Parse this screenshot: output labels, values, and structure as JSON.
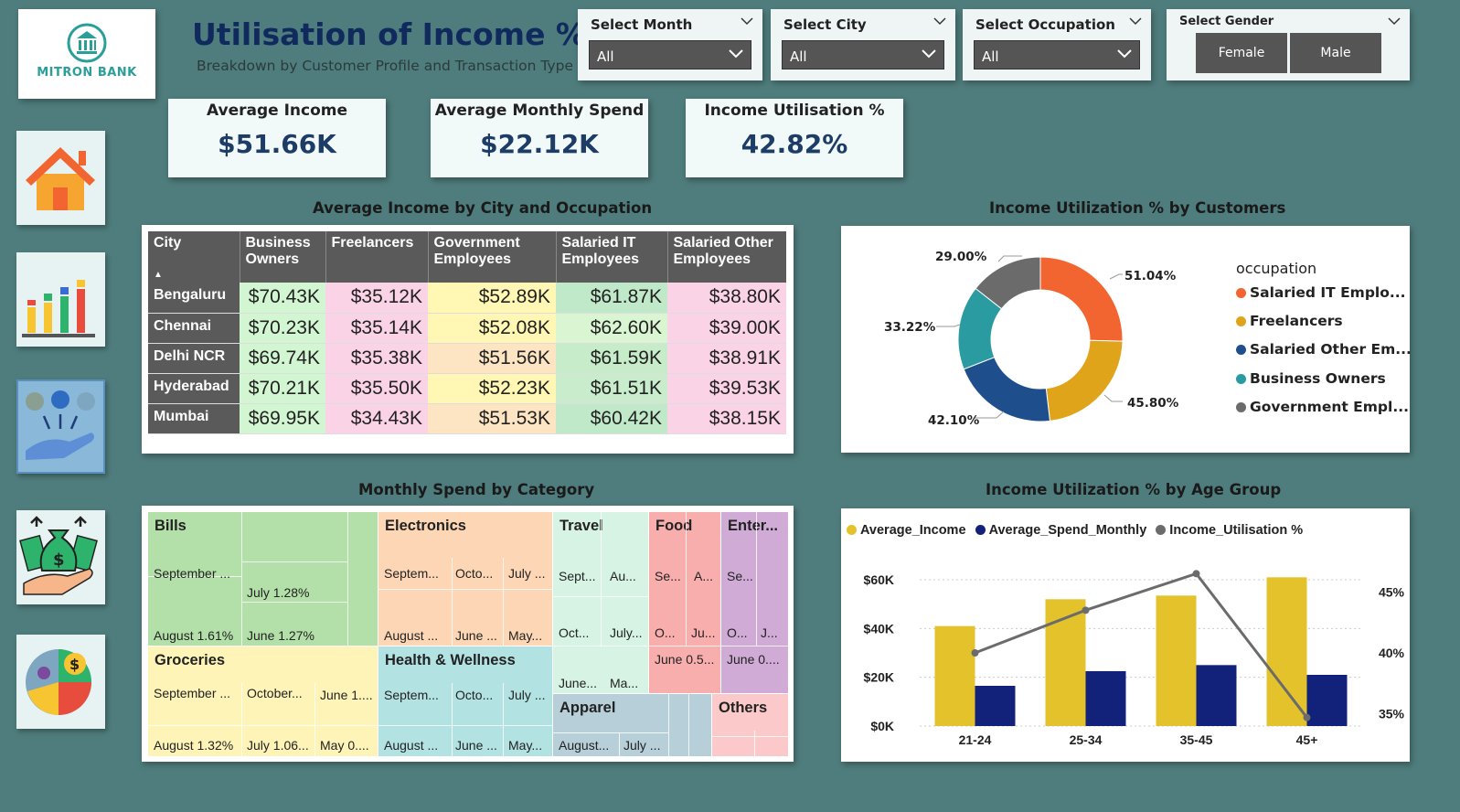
{
  "header": {
    "logo_text": "MITRON BANK",
    "title": "Utilisation of Income %",
    "subtitle": "Breakdown by Customer Profile and Transaction Type"
  },
  "slicers": {
    "month": {
      "label": "Select Month",
      "value": "All"
    },
    "city": {
      "label": "Select City",
      "value": "All"
    },
    "occupation": {
      "label": "Select Occupation",
      "value": "All"
    },
    "gender": {
      "label": "Select Gender",
      "options": [
        "Female",
        "Male"
      ]
    }
  },
  "kpis": [
    {
      "label": "Average Income",
      "value": "$51.66K"
    },
    {
      "label": "Average Monthly Spend",
      "value": "$22.12K"
    },
    {
      "label": "Income Utilisation %",
      "value": "42.82%"
    }
  ],
  "nav": [
    {
      "name": "home-icon"
    },
    {
      "name": "bar-chart-icon"
    },
    {
      "name": "income-flow-icon",
      "active": true
    },
    {
      "name": "money-bag-icon"
    },
    {
      "name": "pie-chart-icon"
    }
  ],
  "matrix": {
    "title": "Average Income by City and Occupation",
    "columns": [
      "City",
      "Business Owners",
      "Freelancers",
      "Government Employees",
      "Salaried IT Employees",
      "Salaried Other Employees"
    ],
    "rows": [
      {
        "city": "Bengaluru",
        "values": [
          "$70.43K",
          "$35.12K",
          "$52.89K",
          "$61.87K",
          "$38.80K"
        ]
      },
      {
        "city": "Chennai",
        "values": [
          "$70.23K",
          "$35.14K",
          "$52.08K",
          "$62.60K",
          "$39.00K"
        ]
      },
      {
        "city": "Delhi NCR",
        "values": [
          "$69.74K",
          "$35.38K",
          "$51.56K",
          "$61.59K",
          "$38.91K"
        ]
      },
      {
        "city": "Hyderabad",
        "values": [
          "$70.21K",
          "$35.50K",
          "$52.23K",
          "$61.51K",
          "$39.53K"
        ]
      },
      {
        "city": "Mumbai",
        "values": [
          "$69.95K",
          "$34.43K",
          "$51.53K",
          "$60.42K",
          "$38.15K"
        ]
      }
    ],
    "colors": [
      [
        "#d2f5d2",
        "#fbd3e6",
        "#fff7b3",
        "#bfe9c8",
        "#fbd3e6"
      ],
      [
        "#d2f5d2",
        "#fbd3e6",
        "#fff7b3",
        "#d9f5d2",
        "#fbd3e6"
      ],
      [
        "#d2f5d2",
        "#fbd3e6",
        "#fde4c2",
        "#c6ecca",
        "#fbd3e6"
      ],
      [
        "#d2f5d2",
        "#fbd3e6",
        "#fff7b3",
        "#c9edcc",
        "#fbd3e6"
      ],
      [
        "#d2f5d2",
        "#fbd3e6",
        "#fde4c2",
        "#bfe9c8",
        "#fbd3e6"
      ]
    ]
  },
  "donut": {
    "title": "Income Utilization % by Customers",
    "legend_title": "occupation",
    "labels": [
      "29.00%",
      "51.04%",
      "33.22%",
      "45.80%",
      "42.10%"
    ],
    "legend": [
      {
        "label": "Salaried IT Emplo...",
        "color": "#f26430"
      },
      {
        "label": "Freelancers",
        "color": "#e0a41b"
      },
      {
        "label": "Salaried Other Em...",
        "color": "#1f4e8c"
      },
      {
        "label": "Business Owners",
        "color": "#2a9ba0"
      },
      {
        "label": "Government Empl...",
        "color": "#6b6b6b"
      }
    ]
  },
  "treemap": {
    "title": "Monthly Spend by Category",
    "categories": [
      "Bills",
      "Electronics",
      "Travel",
      "Food",
      "Enter...",
      "Groceries",
      "Health & Wellness",
      "Apparel",
      "Others"
    ],
    "tiles": [
      "September ...",
      "July 1.28%",
      "August 1.61%",
      "June 1.27%",
      "Septem...",
      "Octo...",
      "July ...",
      "August ...",
      "June ...",
      "May...",
      "Sept...",
      "Au...",
      "Oct...",
      "July...",
      "June...",
      "Ma...",
      "Se...",
      "A...",
      "O...",
      "Ju...",
      "June 0.5...",
      "Se...",
      "O...",
      "J...",
      "June 0....",
      "September ...",
      "October...",
      "June 1....",
      "August 1.32%",
      "July 1.06...",
      "May 0....",
      "Septem...",
      "Octo...",
      "July ...",
      "August ...",
      "June ...",
      "May...",
      "August...",
      "July ..."
    ]
  },
  "combo": {
    "title": "Income Utilization % by Age Group",
    "legend": [
      {
        "label": "Average_Income",
        "color": "#e3c22c"
      },
      {
        "label": "Average_Spend_Monthly",
        "color": "#12217a"
      },
      {
        "label": "Income_Utilisation %",
        "color": "#6b6b6b"
      }
    ],
    "y_left_ticks": [
      "$60K",
      "$40K",
      "$20K",
      "$0K"
    ],
    "y_right_ticks": [
      "45%",
      "40%",
      "35%"
    ]
  },
  "chart_data": [
    {
      "type": "pie",
      "title": "Income Utilization % by Customers",
      "categories": [
        "Salaried IT Employees",
        "Freelancers",
        "Salaried Other Employees",
        "Business Owners",
        "Government Employees"
      ],
      "values": [
        51.04,
        45.8,
        42.1,
        33.22,
        29.0
      ]
    },
    {
      "type": "bar",
      "title": "Income Utilization % by Age Group",
      "categories": [
        "21-24",
        "25-34",
        "35-45",
        "45+"
      ],
      "series": [
        {
          "name": "Average_Income",
          "values": [
            41000,
            52000,
            53500,
            61000
          ],
          "axis": "left"
        },
        {
          "name": "Average_Spend_Monthly",
          "values": [
            16500,
            22500,
            25000,
            21000
          ],
          "axis": "left"
        },
        {
          "name": "Income_Utilisation %",
          "values": [
            40.0,
            43.5,
            46.5,
            34.7
          ],
          "axis": "right",
          "render": "line"
        }
      ],
      "ylim": [
        0,
        60000
      ],
      "y2lim": [
        34,
        46
      ]
    }
  ]
}
